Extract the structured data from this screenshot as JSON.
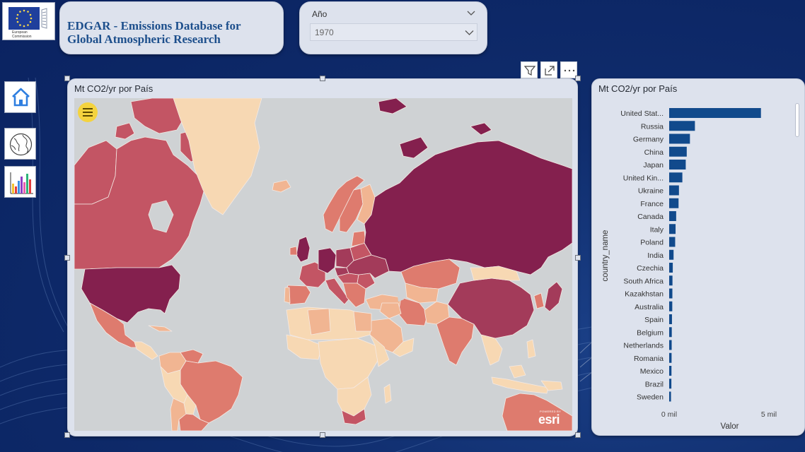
{
  "logo": {
    "org_line1": "European",
    "org_line2": "Commission",
    "icon": "eu-flag-icon"
  },
  "header": {
    "title_line1": "EDGAR - Emissions Database for",
    "title_line2": "Global Atmospheric Research"
  },
  "year_slicer": {
    "label": "Año",
    "selected_value": "1970"
  },
  "nav": {
    "items": [
      {
        "icon": "home-icon"
      },
      {
        "icon": "globe-icon"
      },
      {
        "icon": "bar-chart-icon"
      }
    ]
  },
  "visual_header": {
    "icons": [
      "filter-icon",
      "focus-mode-icon",
      "more-options-icon"
    ]
  },
  "map": {
    "title": "Mt CO2/yr por País",
    "attribution_small": "POWERED BY",
    "attribution_brand": "esri",
    "colors": {
      "ocean": "#cfd2d4",
      "very_low": "#f7d8b3",
      "low": "#f1b592",
      "medium": "#de7b6e",
      "high": "#c35564",
      "very_high": "#a33b5a",
      "highest": "#84204e"
    }
  },
  "bar_chart": {
    "title": "Mt CO2/yr por País",
    "y_axis_label": "country_name",
    "x_axis_label": "Valor",
    "bar_color": "#114a8c",
    "x_ticks": [
      {
        "label": "0 mil",
        "value": 0
      },
      {
        "label": "5 mil",
        "value": 5000
      }
    ]
  },
  "chart_data": {
    "type": "bar",
    "orientation": "horizontal",
    "title": "Mt CO2/yr por País",
    "xlabel": "Valor",
    "ylabel": "country_name",
    "xlim": [
      0,
      5000
    ],
    "categories": [
      "United Stat...",
      "Russia",
      "Germany",
      "China",
      "Japan",
      "United Kin...",
      "Ukraine",
      "France",
      "Canada",
      "Italy",
      "Poland",
      "India",
      "Czechia",
      "South Africa",
      "Kazakhstan",
      "Australia",
      "Spain",
      "Belgium",
      "Netherlands",
      "Romania",
      "Mexico",
      "Brazil",
      "Sweden"
    ],
    "values": [
      4600,
      1290,
      1040,
      880,
      830,
      660,
      490,
      470,
      350,
      320,
      300,
      220,
      180,
      165,
      160,
      155,
      140,
      130,
      125,
      120,
      115,
      110,
      90
    ]
  }
}
